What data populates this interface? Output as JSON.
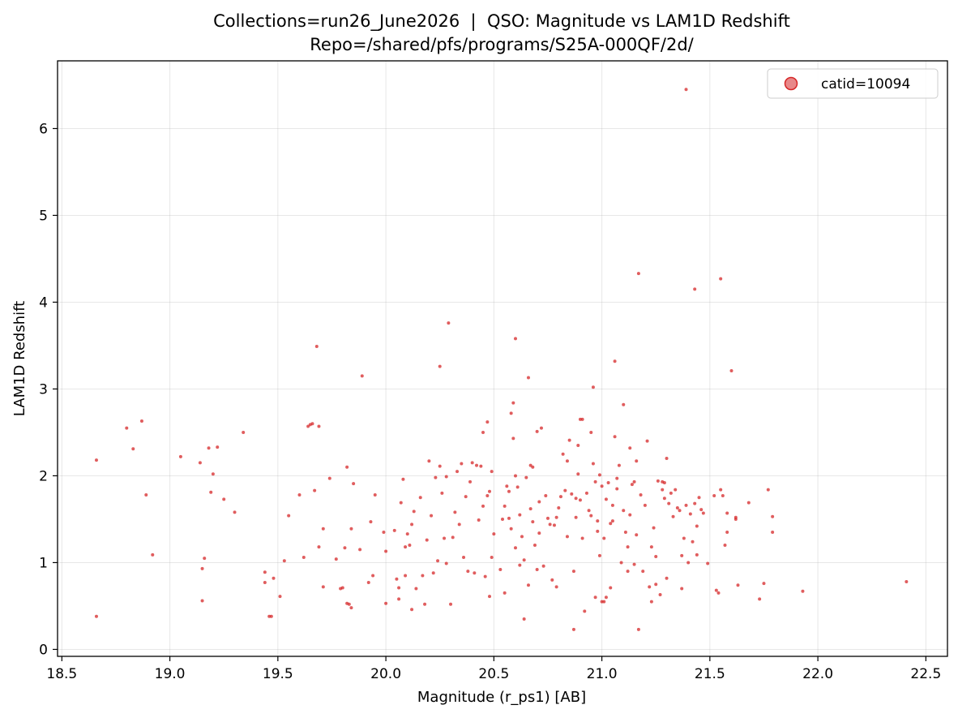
{
  "chart_data": {
    "type": "scatter",
    "title": "Collections=run26_June2026  |  QSO: Magnitude vs LAM1D Redshift",
    "subtitle": "Repo=/shared/pfs/programs/S25A-000QF/2d/",
    "xlabel": "Magnitude (r_ps1) [AB]",
    "ylabel": "LAM1D Redshift",
    "xlim": [
      18.48,
      22.6
    ],
    "ylim": [
      -0.08,
      6.78
    ],
    "xticks": [
      18.5,
      19.0,
      19.5,
      20.0,
      20.5,
      21.0,
      21.5,
      22.0,
      22.5
    ],
    "xtick_labels": [
      "18.5",
      "19.0",
      "19.5",
      "20.0",
      "20.5",
      "21.0",
      "21.5",
      "22.0",
      "22.5"
    ],
    "yticks": [
      0,
      1,
      2,
      3,
      4,
      5,
      6
    ],
    "ytick_labels": [
      "0",
      "1",
      "2",
      "3",
      "4",
      "5",
      "6"
    ],
    "grid": true,
    "legend_position": "top-right",
    "series": [
      {
        "name": "catid=10094",
        "color": "#d62728",
        "points": [
          [
            18.66,
            2.18
          ],
          [
            18.66,
            0.38
          ],
          [
            18.8,
            2.55
          ],
          [
            18.83,
            2.31
          ],
          [
            18.87,
            2.63
          ],
          [
            18.89,
            1.78
          ],
          [
            18.92,
            1.09
          ],
          [
            19.05,
            2.22
          ],
          [
            19.14,
            2.15
          ],
          [
            19.15,
            0.93
          ],
          [
            19.15,
            0.56
          ],
          [
            19.16,
            1.05
          ],
          [
            19.18,
            2.32
          ],
          [
            19.19,
            1.81
          ],
          [
            19.2,
            2.02
          ],
          [
            19.22,
            2.33
          ],
          [
            19.25,
            1.73
          ],
          [
            19.3,
            1.58
          ],
          [
            19.34,
            2.5
          ],
          [
            19.44,
            0.89
          ],
          [
            19.44,
            0.77
          ],
          [
            19.46,
            0.38
          ],
          [
            19.47,
            0.38
          ],
          [
            19.48,
            0.82
          ],
          [
            19.51,
            0.61
          ],
          [
            19.53,
            1.02
          ],
          [
            19.55,
            1.54
          ],
          [
            19.6,
            1.78
          ],
          [
            19.62,
            1.06
          ],
          [
            19.64,
            2.57
          ],
          [
            19.65,
            2.59
          ],
          [
            19.66,
            2.6
          ],
          [
            19.67,
            1.83
          ],
          [
            19.68,
            3.49
          ],
          [
            19.69,
            1.18
          ],
          [
            19.69,
            2.57
          ],
          [
            19.71,
            0.72
          ],
          [
            19.71,
            1.39
          ],
          [
            19.74,
            1.97
          ],
          [
            19.77,
            1.04
          ],
          [
            19.79,
            0.7
          ],
          [
            19.8,
            0.71
          ],
          [
            19.81,
            1.17
          ],
          [
            19.82,
            0.53
          ],
          [
            19.82,
            2.1
          ],
          [
            19.83,
            0.52
          ],
          [
            19.84,
            0.48
          ],
          [
            19.84,
            1.39
          ],
          [
            19.85,
            1.91
          ],
          [
            19.88,
            1.15
          ],
          [
            19.89,
            3.15
          ],
          [
            19.92,
            0.77
          ],
          [
            19.93,
            1.47
          ],
          [
            19.94,
            0.85
          ],
          [
            19.95,
            1.78
          ],
          [
            19.99,
            1.35
          ],
          [
            20.0,
            0.53
          ],
          [
            20.0,
            1.13
          ],
          [
            20.04,
            1.37
          ],
          [
            20.05,
            0.81
          ],
          [
            20.06,
            0.58
          ],
          [
            20.06,
            0.71
          ],
          [
            20.07,
            1.69
          ],
          [
            20.08,
            1.96
          ],
          [
            20.09,
            1.18
          ],
          [
            20.09,
            0.85
          ],
          [
            20.1,
            1.33
          ],
          [
            20.11,
            1.2
          ],
          [
            20.12,
            0.46
          ],
          [
            20.12,
            1.44
          ],
          [
            20.13,
            1.59
          ],
          [
            20.14,
            0.7
          ],
          [
            20.16,
            1.75
          ],
          [
            20.17,
            0.85
          ],
          [
            20.18,
            0.52
          ],
          [
            20.19,
            1.26
          ],
          [
            20.2,
            2.17
          ],
          [
            20.21,
            1.54
          ],
          [
            20.22,
            0.88
          ],
          [
            20.23,
            1.98
          ],
          [
            20.24,
            1.02
          ],
          [
            20.25,
            3.26
          ],
          [
            20.25,
            2.11
          ],
          [
            20.26,
            1.8
          ],
          [
            20.27,
            1.28
          ],
          [
            20.28,
            0.99
          ],
          [
            20.28,
            1.99
          ],
          [
            20.29,
            3.76
          ],
          [
            20.3,
            0.52
          ],
          [
            20.31,
            1.29
          ],
          [
            20.32,
            1.58
          ],
          [
            20.33,
            2.05
          ],
          [
            20.34,
            1.44
          ],
          [
            20.35,
            2.14
          ],
          [
            20.36,
            1.06
          ],
          [
            20.37,
            1.76
          ],
          [
            20.38,
            0.9
          ],
          [
            20.39,
            1.93
          ],
          [
            20.4,
            2.15
          ],
          [
            20.41,
            0.88
          ],
          [
            20.42,
            2.12
          ],
          [
            20.43,
            1.49
          ],
          [
            20.44,
            2.11
          ],
          [
            20.45,
            1.65
          ],
          [
            20.45,
            2.5
          ],
          [
            20.46,
            0.84
          ],
          [
            20.47,
            1.77
          ],
          [
            20.47,
            2.62
          ],
          [
            20.48,
            1.82
          ],
          [
            20.48,
            0.61
          ],
          [
            20.49,
            1.06
          ],
          [
            20.49,
            2.05
          ],
          [
            20.5,
            1.33
          ],
          [
            20.53,
            0.92
          ],
          [
            20.54,
            1.5
          ],
          [
            20.55,
            1.65
          ],
          [
            20.55,
            0.65
          ],
          [
            20.56,
            1.88
          ],
          [
            20.57,
            1.82
          ],
          [
            20.57,
            1.51
          ],
          [
            20.58,
            1.39
          ],
          [
            20.58,
            2.72
          ],
          [
            20.59,
            2.43
          ],
          [
            20.59,
            2.84
          ],
          [
            20.6,
            2.0
          ],
          [
            20.6,
            3.58
          ],
          [
            20.6,
            1.17
          ],
          [
            20.61,
            1.87
          ],
          [
            20.62,
            0.97
          ],
          [
            20.62,
            1.55
          ],
          [
            20.63,
            1.3
          ],
          [
            20.64,
            0.35
          ],
          [
            20.64,
            1.03
          ],
          [
            20.65,
            1.98
          ],
          [
            20.66,
            3.13
          ],
          [
            20.66,
            0.74
          ],
          [
            20.67,
            2.12
          ],
          [
            20.67,
            1.62
          ],
          [
            20.68,
            1.47
          ],
          [
            20.68,
            2.1
          ],
          [
            20.69,
            1.2
          ],
          [
            20.7,
            0.92
          ],
          [
            20.7,
            2.51
          ],
          [
            20.71,
            1.7
          ],
          [
            20.71,
            1.34
          ],
          [
            20.72,
            2.55
          ],
          [
            20.73,
            0.96
          ],
          [
            20.74,
            1.77
          ],
          [
            20.75,
            1.51
          ],
          [
            20.76,
            1.44
          ],
          [
            20.77,
            0.8
          ],
          [
            20.78,
            1.43
          ],
          [
            20.79,
            1.52
          ],
          [
            20.79,
            0.72
          ],
          [
            20.8,
            1.63
          ],
          [
            20.81,
            1.76
          ],
          [
            20.82,
            2.25
          ],
          [
            20.83,
            1.83
          ],
          [
            20.84,
            1.3
          ],
          [
            20.84,
            2.17
          ],
          [
            20.85,
            2.41
          ],
          [
            20.86,
            1.79
          ],
          [
            20.87,
            0.9
          ],
          [
            20.87,
            0.23
          ],
          [
            20.88,
            1.74
          ],
          [
            20.88,
            1.52
          ],
          [
            20.89,
            2.35
          ],
          [
            20.89,
            2.02
          ],
          [
            20.9,
            1.72
          ],
          [
            20.9,
            2.65
          ],
          [
            20.91,
            1.28
          ],
          [
            20.91,
            2.65
          ],
          [
            20.92,
            0.44
          ],
          [
            20.93,
            1.8
          ],
          [
            20.94,
            1.6
          ],
          [
            20.95,
            2.5
          ],
          [
            20.95,
            1.54
          ],
          [
            20.96,
            3.02
          ],
          [
            20.96,
            2.14
          ],
          [
            20.97,
            0.6
          ],
          [
            20.97,
            1.93
          ],
          [
            20.98,
            1.48
          ],
          [
            20.98,
            1.36
          ],
          [
            20.99,
            1.08
          ],
          [
            20.99,
            2.01
          ],
          [
            21.0,
            0.55
          ],
          [
            21.0,
            1.88
          ],
          [
            21.01,
            1.28
          ],
          [
            21.01,
            0.55
          ],
          [
            21.02,
            1.73
          ],
          [
            21.02,
            0.6
          ],
          [
            21.03,
            1.92
          ],
          [
            21.04,
            1.45
          ],
          [
            21.04,
            0.71
          ],
          [
            21.05,
            1.48
          ],
          [
            21.05,
            1.66
          ],
          [
            21.06,
            3.32
          ],
          [
            21.06,
            2.45
          ],
          [
            21.07,
            1.85
          ],
          [
            21.07,
            1.97
          ],
          [
            21.08,
            2.12
          ],
          [
            21.09,
            1.0
          ],
          [
            21.1,
            1.6
          ],
          [
            21.1,
            2.82
          ],
          [
            21.11,
            1.35
          ],
          [
            21.12,
            1.18
          ],
          [
            21.12,
            0.9
          ],
          [
            21.13,
            1.55
          ],
          [
            21.13,
            2.32
          ],
          [
            21.14,
            1.9
          ],
          [
            21.15,
            0.98
          ],
          [
            21.15,
            1.93
          ],
          [
            21.16,
            2.17
          ],
          [
            21.16,
            1.32
          ],
          [
            21.17,
            4.33
          ],
          [
            21.17,
            0.23
          ],
          [
            21.18,
            1.78
          ],
          [
            21.19,
            0.9
          ],
          [
            21.2,
            1.66
          ],
          [
            21.21,
            2.4
          ],
          [
            21.22,
            0.72
          ],
          [
            21.23,
            1.18
          ],
          [
            21.23,
            0.55
          ],
          [
            21.24,
            1.4
          ],
          [
            21.25,
            1.07
          ],
          [
            21.25,
            0.75
          ],
          [
            21.26,
            1.94
          ],
          [
            21.27,
            0.63
          ],
          [
            21.28,
            1.93
          ],
          [
            21.28,
            1.84
          ],
          [
            21.29,
            1.92
          ],
          [
            21.29,
            1.74
          ],
          [
            21.3,
            0.82
          ],
          [
            21.3,
            2.2
          ],
          [
            21.31,
            1.68
          ],
          [
            21.32,
            1.8
          ],
          [
            21.33,
            1.53
          ],
          [
            21.34,
            1.84
          ],
          [
            21.35,
            1.63
          ],
          [
            21.36,
            1.6
          ],
          [
            21.37,
            0.7
          ],
          [
            21.37,
            1.08
          ],
          [
            21.38,
            1.28
          ],
          [
            21.39,
            6.45
          ],
          [
            21.39,
            1.66
          ],
          [
            21.4,
            1.0
          ],
          [
            21.41,
            1.56
          ],
          [
            21.42,
            1.24
          ],
          [
            21.43,
            1.68
          ],
          [
            21.43,
            4.15
          ],
          [
            21.44,
            1.42
          ],
          [
            21.44,
            1.09
          ],
          [
            21.45,
            1.75
          ],
          [
            21.46,
            1.61
          ],
          [
            21.47,
            1.57
          ],
          [
            21.49,
            0.99
          ],
          [
            21.52,
            1.77
          ],
          [
            21.53,
            0.68
          ],
          [
            21.54,
            0.65
          ],
          [
            21.55,
            4.27
          ],
          [
            21.55,
            1.84
          ],
          [
            21.56,
            1.77
          ],
          [
            21.57,
            1.2
          ],
          [
            21.58,
            1.35
          ],
          [
            21.58,
            1.57
          ],
          [
            21.6,
            3.21
          ],
          [
            21.62,
            1.52
          ],
          [
            21.62,
            1.5
          ],
          [
            21.63,
            0.74
          ],
          [
            21.68,
            1.69
          ],
          [
            21.73,
            0.58
          ],
          [
            21.75,
            0.76
          ],
          [
            21.77,
            1.84
          ],
          [
            21.79,
            1.53
          ],
          [
            21.79,
            1.35
          ],
          [
            21.93,
            0.67
          ],
          [
            22.41,
            0.78
          ]
        ]
      }
    ]
  }
}
